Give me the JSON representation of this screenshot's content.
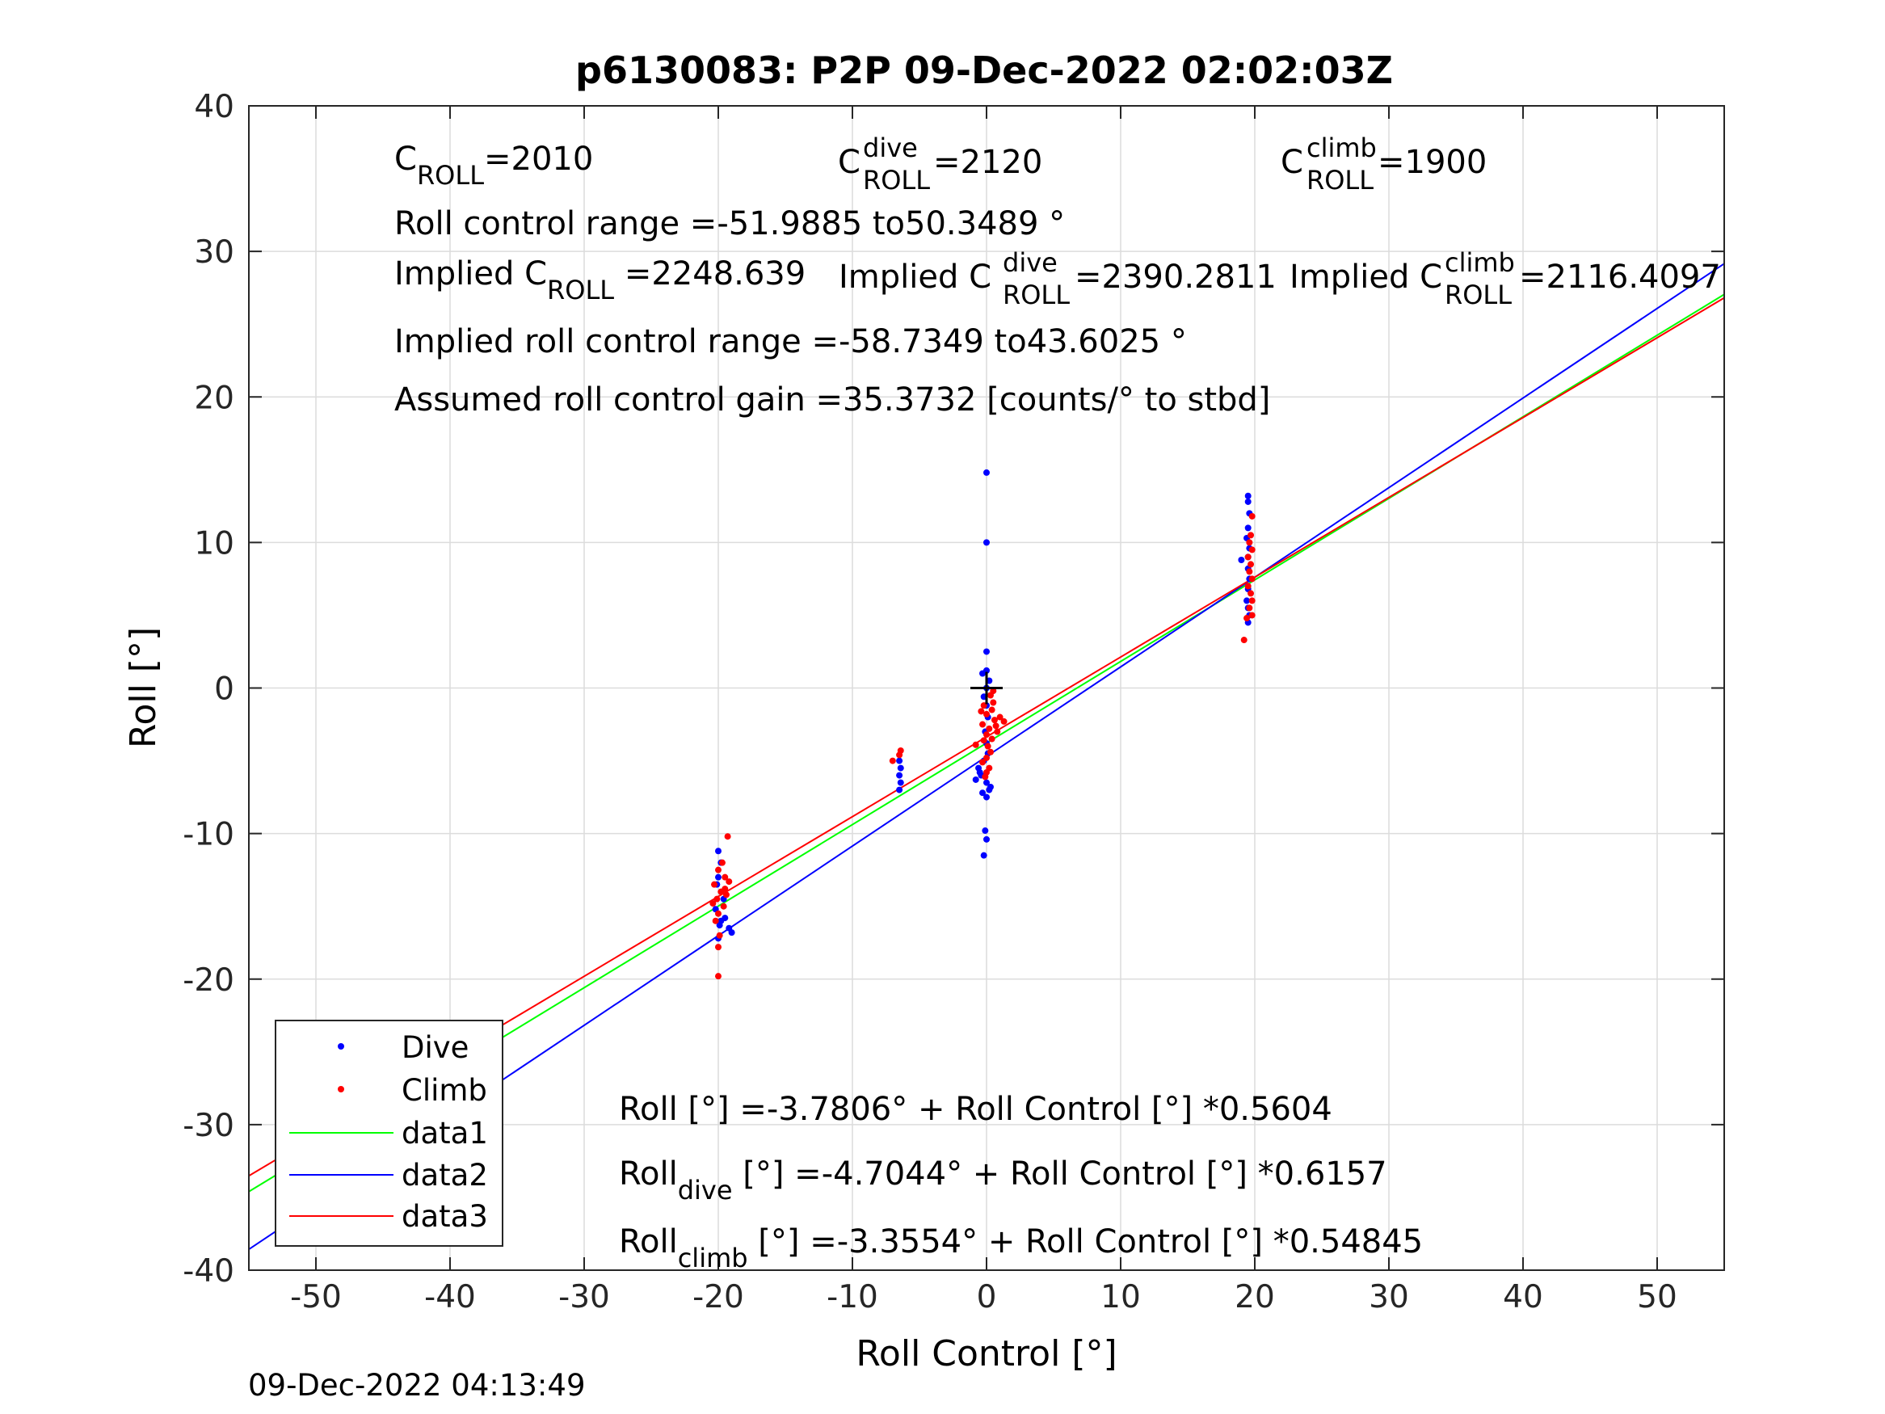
{
  "chart_data": {
    "type": "scatter",
    "title": "p6130083: P2P 09-Dec-2022 02:02:03Z",
    "xlabel": "Roll Control [°]",
    "ylabel": "Roll [°]",
    "xlim": [
      -55,
      55
    ],
    "ylim": [
      -40,
      40
    ],
    "xticks": [
      -50,
      -40,
      -30,
      -20,
      -10,
      0,
      10,
      20,
      30,
      40,
      50
    ],
    "yticks": [
      -40,
      -30,
      -20,
      -10,
      0,
      10,
      20,
      30,
      40
    ],
    "xtick_labels": [
      "-50",
      "-40",
      "-30",
      "-20",
      "-10",
      "0",
      "10",
      "20",
      "30",
      "40",
      "50"
    ],
    "ytick_labels": [
      "-40",
      "-30",
      "-20",
      "-10",
      "0",
      "10",
      "20",
      "30",
      "40"
    ],
    "grid": true,
    "legend_position": "bottom-left",
    "timestamp": "09-Dec-2022 04:13:49",
    "center_marker": [
      0,
      0
    ],
    "annotations": {
      "c_roll": {
        "base": "C",
        "sub": "ROLL",
        "rest": "=2010"
      },
      "c_roll_dive": {
        "base": "C",
        "sup": "dive",
        "sub": "ROLL",
        "rest": " =2120"
      },
      "c_roll_climb": {
        "base": "C",
        "sup": "climb",
        "sub": "ROLL",
        "rest": " =1900"
      },
      "roll_range": "Roll control range =-51.9885 to50.3489 °",
      "implied_c_roll": {
        "base": "Implied C",
        "sub": "ROLL",
        "rest": " =2248.639"
      },
      "implied_c_roll_dive": {
        "base": "Implied C",
        "sup": "dive",
        "sub": "ROLL",
        "rest": " =2390.2811"
      },
      "implied_c_roll_climb": {
        "base": "Implied C",
        "sup": "climb",
        "sub": "ROLL",
        "rest": " =2116.4097"
      },
      "implied_range": "Implied roll control range =-58.7349 to43.6025 °",
      "gain": "Assumed roll control gain =35.3732 [counts/° to stbd]",
      "fit_all": "Roll [°] =-3.7806° + Roll Control [°] *0.5604",
      "fit_dive": {
        "base": "Roll",
        "sub": "dive",
        "rest": " [°] =-4.7044° + Roll Control [°] *0.6157"
      },
      "fit_climb": {
        "base": "Roll",
        "sub": "climb",
        "rest": " [°] =-3.3554° + Roll Control [°] *0.54845"
      }
    },
    "series": [
      {
        "name": "Dive",
        "kind": "points",
        "color": "#0000ff",
        "points": [
          [
            0,
            14.8
          ],
          [
            0,
            10.0
          ],
          [
            0,
            2.5
          ],
          [
            0,
            1.2
          ],
          [
            -0.3,
            1.0
          ],
          [
            0.2,
            0.5
          ],
          [
            0,
            0.0
          ],
          [
            -0.2,
            -0.6
          ],
          [
            0,
            -1.2
          ],
          [
            0.1,
            -2.0
          ],
          [
            -0.1,
            -3.0
          ],
          [
            0,
            -3.8
          ],
          [
            0.1,
            -4.5
          ],
          [
            -0.2,
            -5.0
          ],
          [
            -0.6,
            -5.5
          ],
          [
            -0.4,
            -6.0
          ],
          [
            -0.8,
            -6.3
          ],
          [
            0,
            -6.5
          ],
          [
            0.2,
            -7.0
          ],
          [
            -0.3,
            -7.2
          ],
          [
            0,
            -7.5
          ],
          [
            -0.5,
            -5.8
          ],
          [
            0.3,
            -6.8
          ],
          [
            -0.1,
            -9.8
          ],
          [
            0,
            -10.4
          ],
          [
            -0.2,
            -11.5
          ],
          [
            -6.5,
            -5.0
          ],
          [
            -6.4,
            -5.5
          ],
          [
            -6.5,
            -6.0
          ],
          [
            -6.4,
            -6.5
          ],
          [
            -6.5,
            -7.0
          ],
          [
            -20,
            -11.2
          ],
          [
            -19.8,
            -12.0
          ],
          [
            -20,
            -13.0
          ],
          [
            -19.6,
            -14.5
          ],
          [
            -20.2,
            -15.2
          ],
          [
            -19.8,
            -16.0
          ],
          [
            -19.2,
            -16.5
          ],
          [
            -20,
            -17.2
          ],
          [
            -19,
            -16.8
          ],
          [
            -19.5,
            -15.8
          ],
          [
            -20.1,
            -13.5
          ],
          [
            -19.9,
            -16.3
          ],
          [
            19.5,
            13.2
          ],
          [
            19.5,
            12.8
          ],
          [
            19.6,
            12.0
          ],
          [
            19.5,
            11.0
          ],
          [
            19.4,
            10.3
          ],
          [
            19.6,
            9.6
          ],
          [
            19.5,
            9.0
          ],
          [
            19.0,
            8.8
          ],
          [
            19.5,
            8.2
          ],
          [
            19.6,
            7.5
          ],
          [
            19.5,
            6.8
          ],
          [
            19.4,
            6.0
          ],
          [
            19.5,
            5.5
          ],
          [
            19.6,
            5.0
          ],
          [
            19.5,
            4.5
          ]
        ]
      },
      {
        "name": "Climb",
        "kind": "points",
        "color": "#ff0000",
        "points": [
          [
            0.3,
            -0.5
          ],
          [
            0.5,
            -1.0
          ],
          [
            -0.2,
            -1.2
          ],
          [
            0.4,
            -1.5
          ],
          [
            0,
            -1.8
          ],
          [
            1.0,
            -2.0
          ],
          [
            0.6,
            -2.2
          ],
          [
            -0.3,
            -2.5
          ],
          [
            0.2,
            -2.8
          ],
          [
            1.3,
            -2.3
          ],
          [
            0.8,
            -3.0
          ],
          [
            0,
            -3.2
          ],
          [
            0.4,
            -3.5
          ],
          [
            -0.2,
            -3.6
          ],
          [
            0.1,
            -4.0
          ],
          [
            -0.8,
            -3.9
          ],
          [
            0.3,
            -4.4
          ],
          [
            0,
            -4.8
          ],
          [
            -0.3,
            -5.1
          ],
          [
            0.2,
            -5.5
          ],
          [
            0,
            -5.8
          ],
          [
            -0.1,
            -6.1
          ],
          [
            0.5,
            -0.2
          ],
          [
            -0.4,
            -1.6
          ],
          [
            0.7,
            -2.6
          ],
          [
            -7,
            -5.0
          ],
          [
            -6.4,
            -4.3
          ],
          [
            -6.5,
            -4.6
          ],
          [
            -20,
            -12.5
          ],
          [
            -19.5,
            -13.0
          ],
          [
            -20.3,
            -13.5
          ],
          [
            -19.8,
            -14.0
          ],
          [
            -19.2,
            -13.3
          ],
          [
            -20.1,
            -14.5
          ],
          [
            -19.6,
            -15.0
          ],
          [
            -20,
            -15.5
          ],
          [
            -19.4,
            -14.2
          ],
          [
            -20.2,
            -16.0
          ],
          [
            -19.9,
            -17.0
          ],
          [
            -20,
            -17.8
          ],
          [
            -19.3,
            -10.2
          ],
          [
            -19.7,
            -12.0
          ],
          [
            -20,
            -19.8
          ],
          [
            -19.5,
            -13.8
          ],
          [
            -20.4,
            -14.8
          ],
          [
            19.8,
            11.8
          ],
          [
            19.7,
            10.5
          ],
          [
            19.6,
            10.0
          ],
          [
            19.8,
            9.5
          ],
          [
            19.5,
            9.0
          ],
          [
            19.7,
            8.5
          ],
          [
            19.6,
            8.0
          ],
          [
            19.8,
            7.5
          ],
          [
            19.5,
            7.0
          ],
          [
            19.7,
            6.5
          ],
          [
            19.8,
            6.0
          ],
          [
            19.6,
            5.5
          ],
          [
            19.8,
            5.0
          ],
          [
            19.4,
            4.8
          ],
          [
            19.2,
            3.3
          ]
        ]
      },
      {
        "name": "data1",
        "kind": "line",
        "color": "#00ff00",
        "intercept": -3.7806,
        "slope": 0.5604
      },
      {
        "name": "data2",
        "kind": "line",
        "color": "#0000ff",
        "intercept": -4.7044,
        "slope": 0.6157
      },
      {
        "name": "data3",
        "kind": "line",
        "color": "#ff0000",
        "intercept": -3.3554,
        "slope": 0.54845
      }
    ]
  }
}
